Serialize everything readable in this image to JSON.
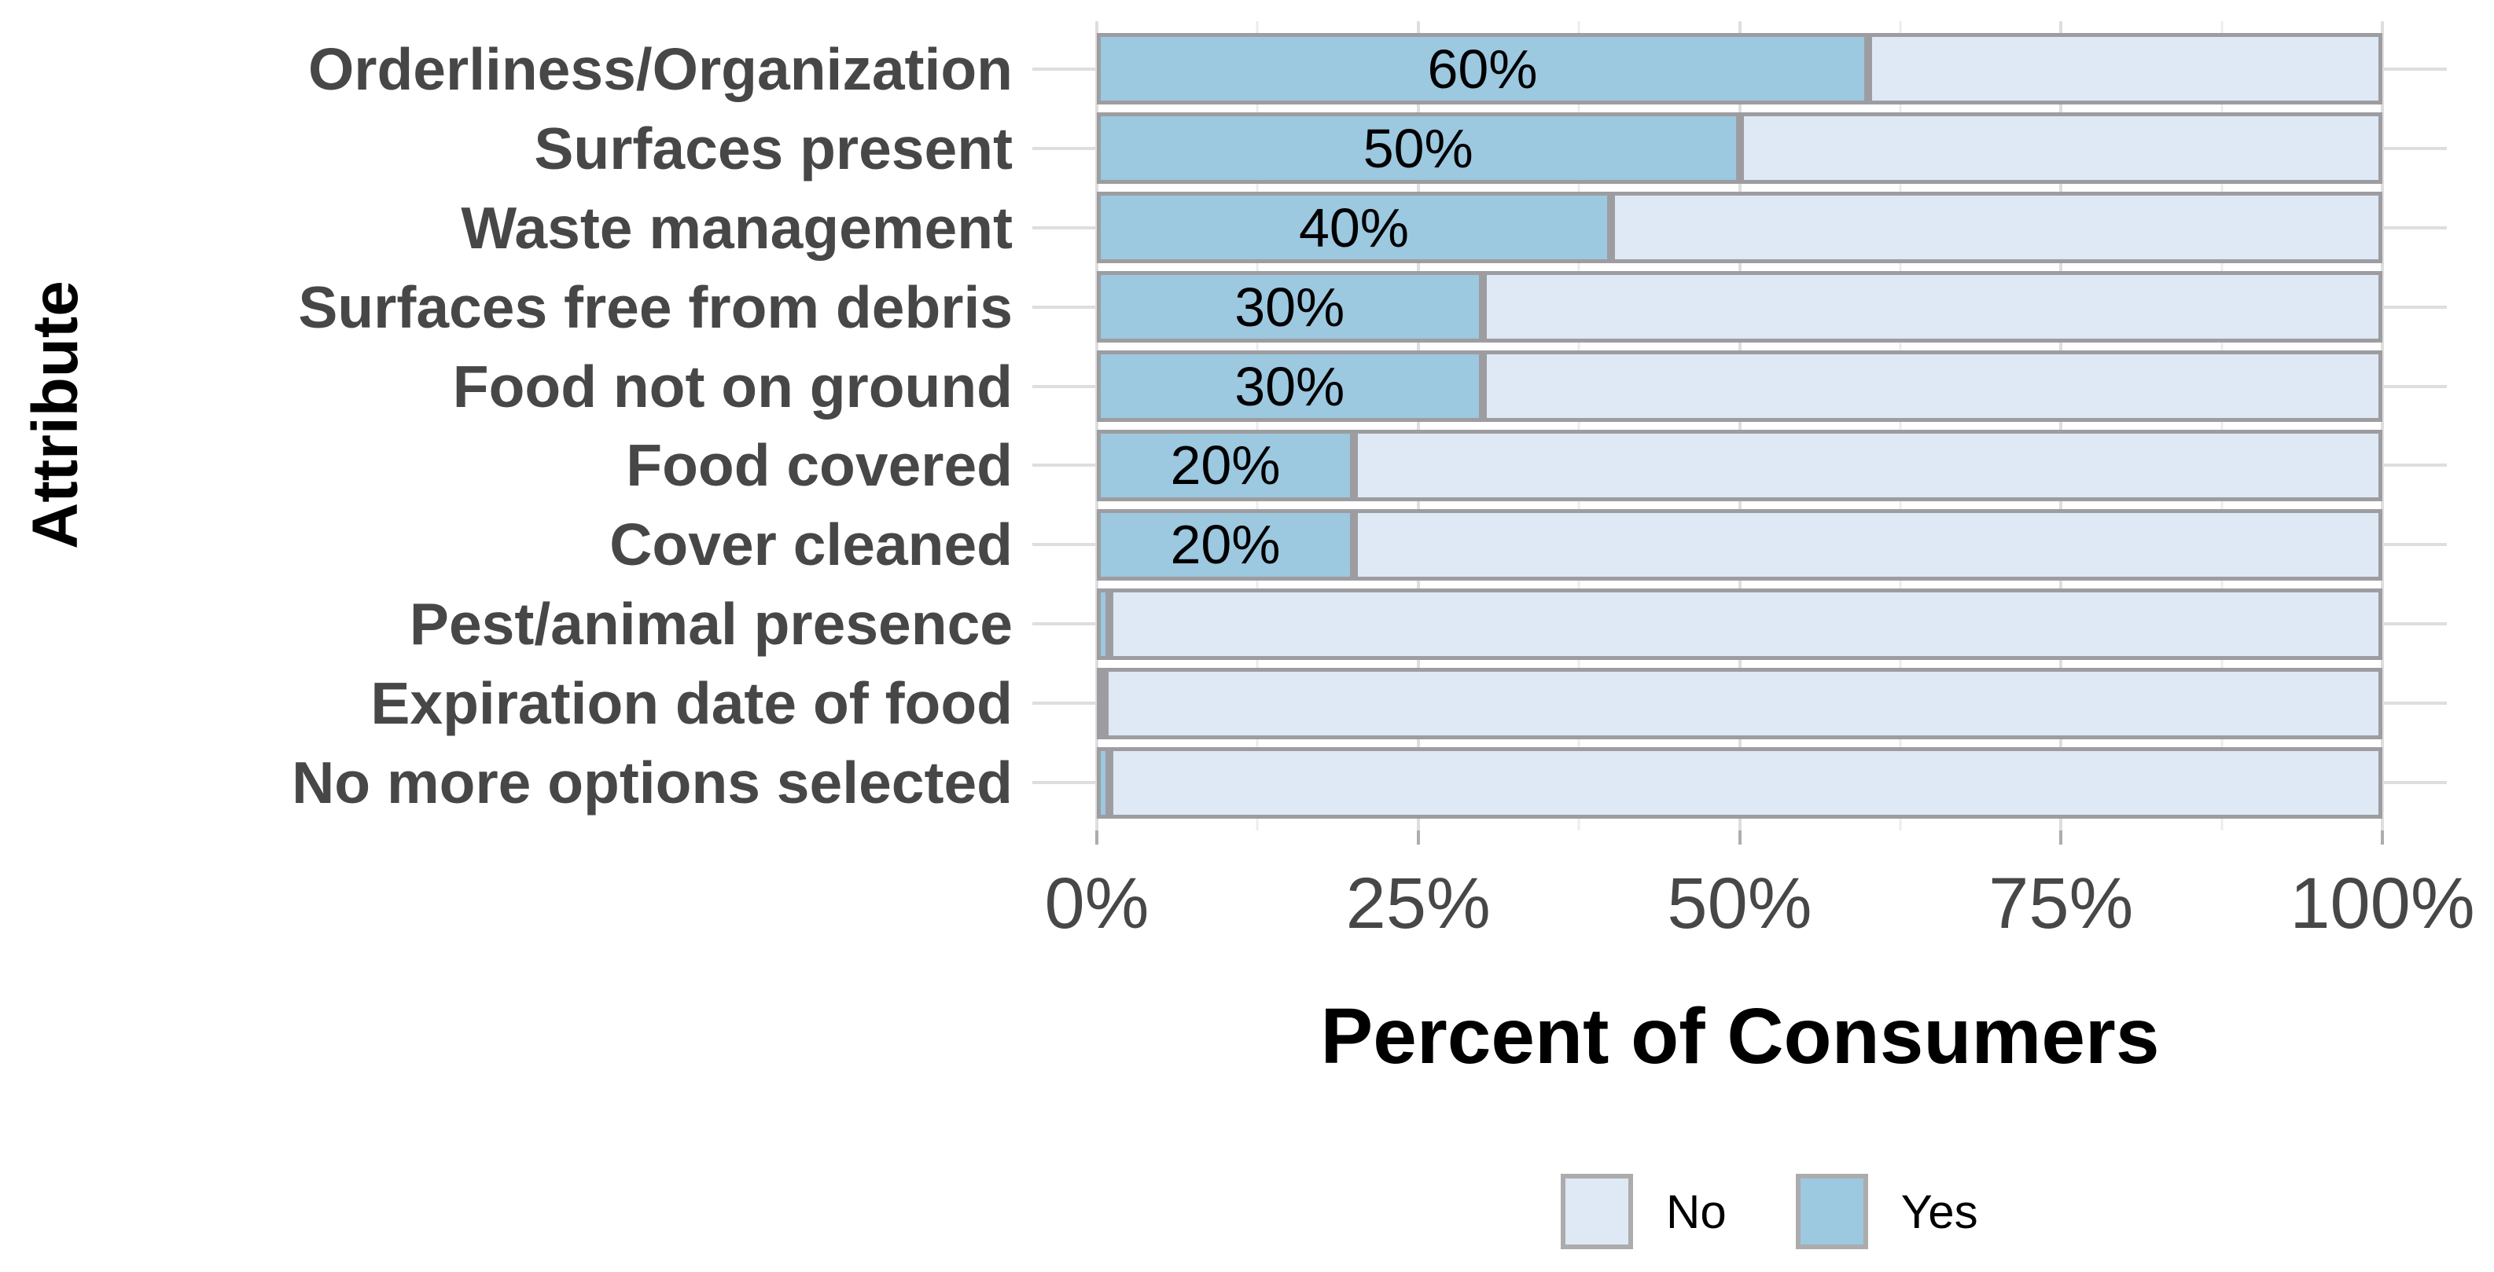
{
  "chart_data": {
    "type": "bar",
    "orientation": "horizontal",
    "stacked": true,
    "title": "",
    "xlabel": "Percent of Consumers",
    "ylabel": "Attribute",
    "categories": [
      "Orderliness/Organization",
      "Surfaces present",
      "Waste management",
      "Surfaces free from debris",
      "Food not on ground",
      "Food covered",
      "Cover cleaned",
      "Pest/animal presence",
      "Expiration date of food",
      "No more options selected"
    ],
    "series": [
      {
        "name": "Yes",
        "color": "#9cc8e0",
        "values": [
          60,
          50,
          40,
          30,
          30,
          20,
          20,
          1,
          0.5,
          1
        ]
      },
      {
        "name": "No",
        "color": "#dee9f5",
        "values": [
          40,
          50,
          60,
          70,
          70,
          80,
          80,
          99,
          99.5,
          99
        ]
      }
    ],
    "bar_labels": [
      "60%",
      "50%",
      "40%",
      "30%",
      "30%",
      "20%",
      "20%",
      "",
      "",
      ""
    ],
    "x_ticks": [
      {
        "label": "0%",
        "value": 0
      },
      {
        "label": "25%",
        "value": 25
      },
      {
        "label": "50%",
        "value": 50
      },
      {
        "label": "75%",
        "value": 75
      },
      {
        "label": "100%",
        "value": 100
      }
    ],
    "x_minor_ticks": [
      12.5,
      37.5,
      62.5,
      87.5
    ],
    "xlim": [
      0,
      100
    ],
    "grid": true,
    "legend_position": "bottom",
    "legend": [
      {
        "label": "No",
        "color": "#dee9f5"
      },
      {
        "label": "Yes",
        "color": "#9cc8e0"
      }
    ]
  },
  "colors": {
    "background": "#ffffff",
    "bar_border": "#9d9da1",
    "grid_major": "#dedede",
    "grid_minor": "#ececec",
    "axis_text": "#474747",
    "title_text": "#000000",
    "bar_label_text": "#000000",
    "tick_mark": "#adadad",
    "legend_swatch_border": "#acacac"
  }
}
